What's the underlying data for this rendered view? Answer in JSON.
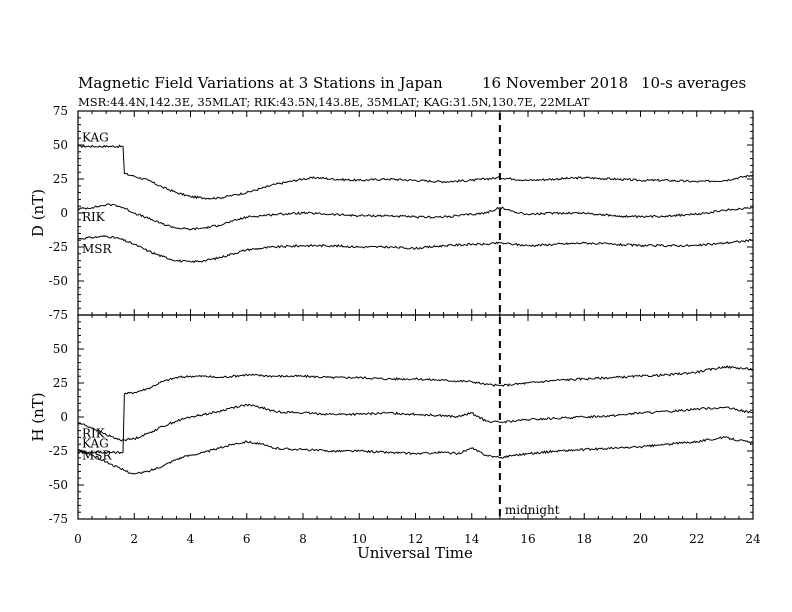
{
  "header": {
    "title": "Magnetic Field Variations at 3 Stations in Japan",
    "date": "16 November 2018",
    "averaging": "10-s averages",
    "stations_line": "MSR:44.4N,142.3E, 35MLAT;  RIK:43.5N,143.8E, 35MLAT;  KAG:31.5N,130.7E, 22MLAT"
  },
  "chart_data": {
    "type": "line",
    "xlabel": "Universal Time",
    "xlim": [
      0,
      24
    ],
    "x_ticks": [
      0,
      2,
      4,
      6,
      8,
      10,
      12,
      14,
      16,
      18,
      20,
      22,
      24
    ],
    "marker": {
      "x": 15,
      "label": "midnight"
    },
    "panels": [
      {
        "ylabel": "D (nT)",
        "ylim": [
          -75,
          75
        ],
        "y_ticks": [
          75,
          50,
          25,
          0,
          -25,
          -50,
          -75
        ],
        "series": [
          {
            "name": "KAG",
            "x": [
              0,
              1.6,
              1.65,
              2,
              2.5,
              3,
              3.5,
              4,
              4.5,
              5,
              5.5,
              6,
              6.5,
              7,
              7.5,
              8,
              8.5,
              9,
              10,
              11,
              12,
              13,
              14,
              14.5,
              15,
              15.5,
              16,
              17,
              18,
              19,
              20,
              21,
              22,
              23,
              24
            ],
            "y": [
              49,
              49,
              29,
              27,
              24,
              19,
              15,
              12,
              11,
              11,
              13,
              15,
              18,
              21,
              23,
              25,
              26,
              25,
              24,
              25,
              24,
              23,
              24,
              25,
              26,
              25,
              24,
              25,
              26,
              25,
              24,
              24,
              23,
              24,
              28
            ]
          },
          {
            "name": "RIK",
            "x": [
              0,
              0.5,
              1,
              1.3,
              1.6,
              2,
              2.5,
              3,
              3.5,
              4,
              4.5,
              5,
              5.5,
              6,
              6.5,
              7,
              8,
              9,
              10,
              11,
              12,
              13,
              14,
              14.5,
              15,
              15.5,
              16,
              17,
              18,
              19,
              20,
              21,
              22,
              23,
              24
            ],
            "y": [
              3,
              4,
              6,
              6,
              4,
              0,
              -4,
              -8,
              -11,
              -12,
              -11,
              -9,
              -6,
              -3,
              -2,
              -1,
              0,
              -1,
              -2,
              -2,
              -3,
              -3,
              -1,
              0,
              4,
              1,
              -1,
              0,
              0,
              -2,
              -3,
              -2,
              -1,
              2,
              4
            ]
          },
          {
            "name": "MSR",
            "x": [
              0,
              0.5,
              1,
              1.5,
              2,
              2.5,
              3,
              3.5,
              4,
              4.5,
              5,
              5.5,
              6,
              6.5,
              7,
              8,
              9,
              10,
              11,
              12,
              13,
              14,
              14.5,
              15,
              15.5,
              16,
              17,
              18,
              19,
              20,
              21,
              22,
              23,
              24
            ],
            "y": [
              -19,
              -18,
              -17,
              -19,
              -23,
              -28,
              -32,
              -35,
              -36,
              -35,
              -33,
              -30,
              -27,
              -26,
              -25,
              -24,
              -24,
              -25,
              -25,
              -26,
              -24,
              -23,
              -23,
              -22,
              -23,
              -24,
              -23,
              -22,
              -23,
              -24,
              -24,
              -24,
              -22,
              -20
            ]
          }
        ]
      },
      {
        "ylabel": "H (nT)",
        "ylim": [
          -75,
          75
        ],
        "y_ticks": [
          75,
          50,
          25,
          0,
          -25,
          -50,
          -75
        ],
        "series": [
          {
            "name": "KAG",
            "x": [
              0,
              1.6,
              1.65,
              2,
              2.5,
              3,
              3.5,
              4,
              4.5,
              5,
              5.5,
              6,
              7,
              8,
              9,
              10,
              11,
              12,
              13,
              14,
              14.5,
              15,
              15.5,
              16,
              17,
              18,
              19,
              20,
              21,
              22,
              23,
              24
            ],
            "y": [
              -26,
              -26,
              17,
              18,
              21,
              26,
              29,
              30,
              30,
              29,
              30,
              31,
              30,
              30,
              29,
              29,
              28,
              28,
              27,
              26,
              24,
              23,
              24,
              25,
              27,
              28,
              29,
              30,
              31,
              33,
              37,
              35
            ]
          },
          {
            "name": "RIK",
            "x": [
              0,
              0.5,
              1,
              1.5,
              2,
              2.5,
              3,
              3.5,
              4,
              4.5,
              5,
              5.5,
              6,
              6.5,
              7,
              8,
              9,
              10,
              11,
              12,
              13,
              13.5,
              14,
              14.5,
              15,
              15.5,
              16,
              17,
              18,
              19,
              20,
              21,
              22,
              23,
              24
            ],
            "y": [
              -4,
              -8,
              -13,
              -17,
              -16,
              -12,
              -7,
              -3,
              0,
              2,
              4,
              7,
              9,
              7,
              4,
              3,
              2,
              2,
              3,
              2,
              1,
              0,
              3,
              -3,
              -4,
              -3,
              -2,
              -1,
              0,
              1,
              3,
              4,
              6,
              7,
              3
            ]
          },
          {
            "name": "MSR",
            "x": [
              0,
              0.5,
              1,
              1.5,
              2,
              2.5,
              3,
              3.5,
              4,
              4.5,
              5,
              5.5,
              6,
              6.5,
              7,
              8,
              9,
              10,
              11,
              12,
              13,
              13.5,
              14,
              14.5,
              15,
              15.5,
              16,
              17,
              18,
              19,
              20,
              21,
              22,
              23,
              24
            ],
            "y": [
              -24,
              -28,
              -33,
              -38,
              -42,
              -40,
              -36,
              -31,
              -28,
              -26,
              -23,
              -20,
              -18,
              -20,
              -23,
              -24,
              -25,
              -25,
              -26,
              -27,
              -26,
              -27,
              -23,
              -28,
              -30,
              -28,
              -27,
              -25,
              -24,
              -23,
              -22,
              -20,
              -18,
              -15,
              -19
            ]
          }
        ]
      }
    ]
  }
}
